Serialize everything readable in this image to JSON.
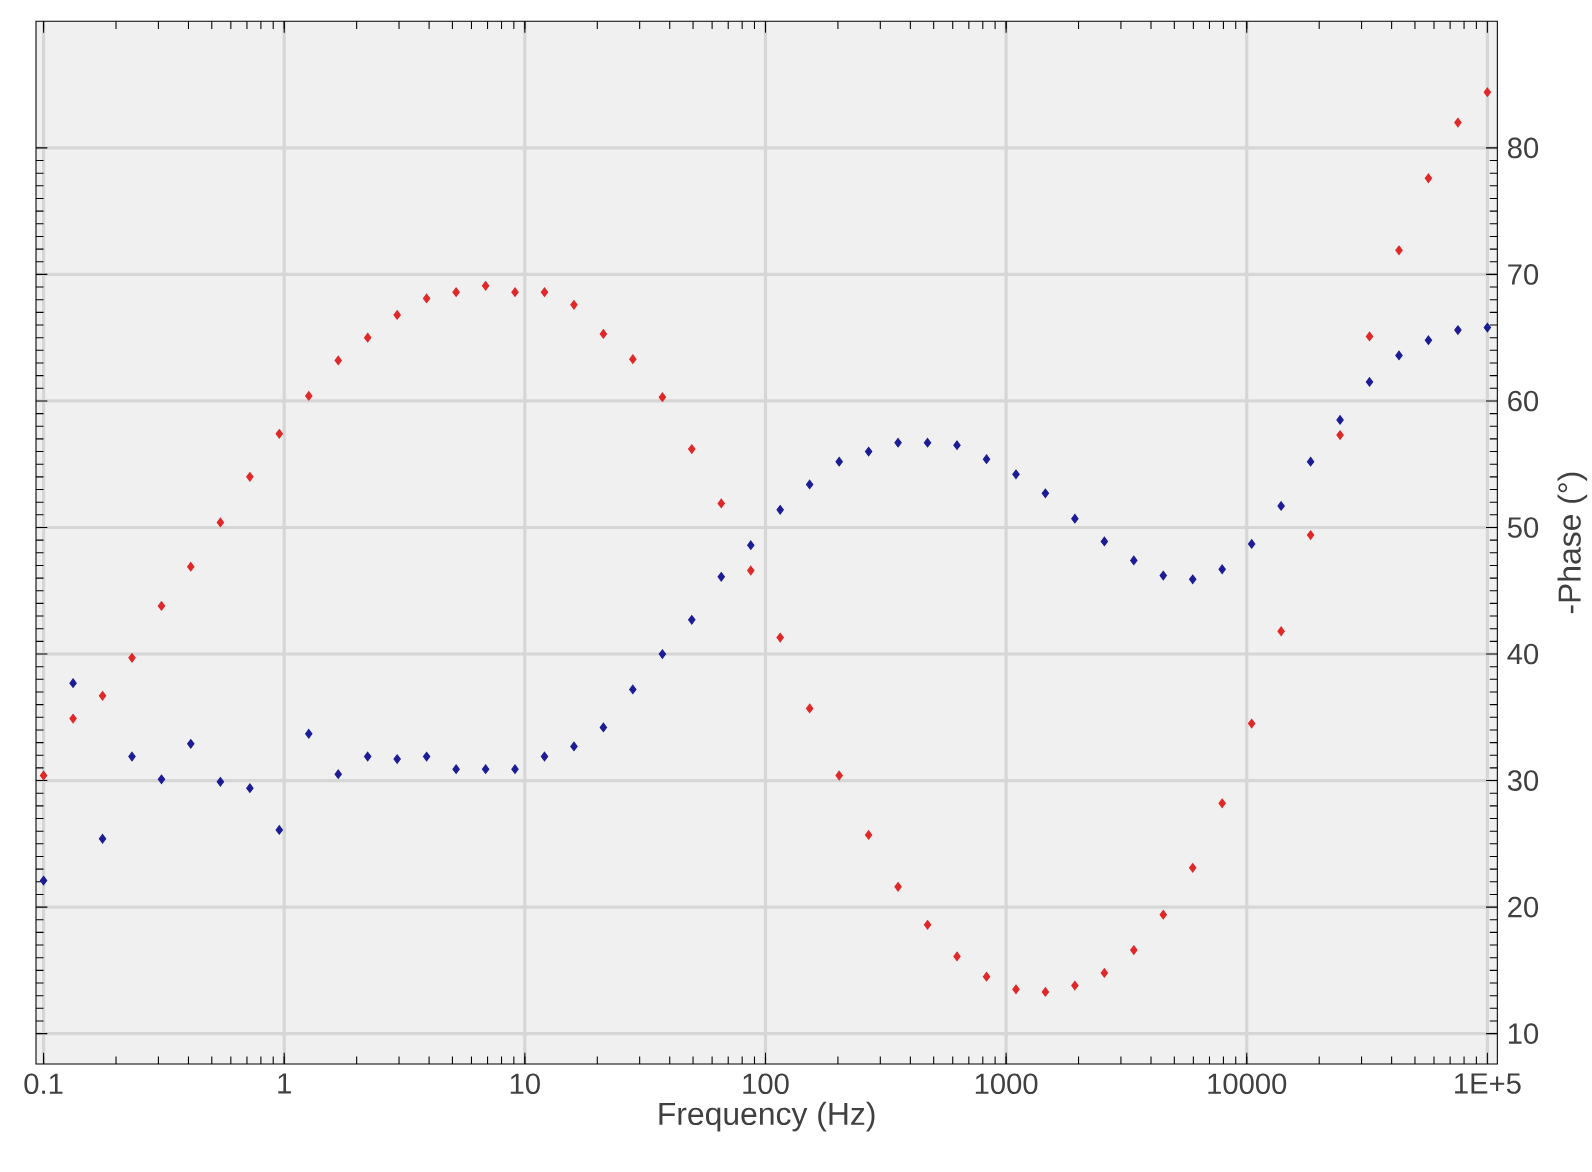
{
  "chart_data": {
    "type": "scatter",
    "xlabel": "Frequency (Hz)",
    "ylabel": "-Phase (°)",
    "log": "x",
    "grid": true,
    "marker": "diamond",
    "xlim": [
      0.093,
      110000
    ],
    "ylim": [
      7.6,
      90
    ],
    "xticks": [
      0.1,
      1,
      10,
      100,
      1000,
      10000,
      {
        "value": 100000,
        "label": "1E+5"
      }
    ],
    "yticks": [
      10,
      20,
      30,
      40,
      50,
      60,
      70,
      80
    ],
    "x": [
      0.1,
      0.1326,
      0.1758,
      0.233,
      0.309,
      0.409,
      0.543,
      0.72,
      0.954,
      1.265,
      1.677,
      2.223,
      2.947,
      3.907,
      5.18,
      6.87,
      9.1,
      12.07,
      16.0,
      21.2,
      28.1,
      37.3,
      49.4,
      65.5,
      86.9,
      115.1,
      152.6,
      202.4,
      268.3,
      355.7,
      471.5,
      625,
      829,
      1099,
      1456,
      1931,
      2560,
      3393,
      4498,
      5963,
      7906,
      10481,
      13895,
      18421,
      24420,
      32374,
      42919,
      56898,
      75431,
      100000
    ],
    "series": [
      {
        "color": "#e02828",
        "values": [
          30.4,
          34.9,
          36.7,
          39.7,
          43.8,
          46.9,
          50.4,
          54.0,
          57.4,
          60.4,
          63.2,
          65.0,
          66.8,
          68.1,
          68.6,
          69.1,
          68.6,
          68.6,
          67.6,
          65.3,
          63.3,
          60.3,
          56.2,
          51.9,
          46.6,
          41.3,
          35.7,
          30.4,
          25.7,
          21.6,
          18.6,
          16.1,
          14.5,
          13.5,
          13.3,
          13.8,
          14.8,
          16.6,
          19.4,
          23.1,
          28.2,
          34.5,
          41.8,
          49.4,
          57.3,
          65.1,
          71.9,
          77.6,
          82.0,
          84.4
        ]
      },
      {
        "color": "#1c1c96",
        "values": [
          22.1,
          37.7,
          25.4,
          31.9,
          30.1,
          32.9,
          29.9,
          29.4,
          26.1,
          33.7,
          30.5,
          31.9,
          31.7,
          31.9,
          30.9,
          30.9,
          30.9,
          31.9,
          32.7,
          34.2,
          37.2,
          40.0,
          42.7,
          46.1,
          48.6,
          51.4,
          53.4,
          55.2,
          56.0,
          56.7,
          56.7,
          56.5,
          55.4,
          54.2,
          52.7,
          50.7,
          48.9,
          47.4,
          46.2,
          45.9,
          46.7,
          48.7,
          51.7,
          55.2,
          58.5,
          61.5,
          63.6,
          64.8,
          65.6,
          65.8
        ]
      }
    ]
  }
}
